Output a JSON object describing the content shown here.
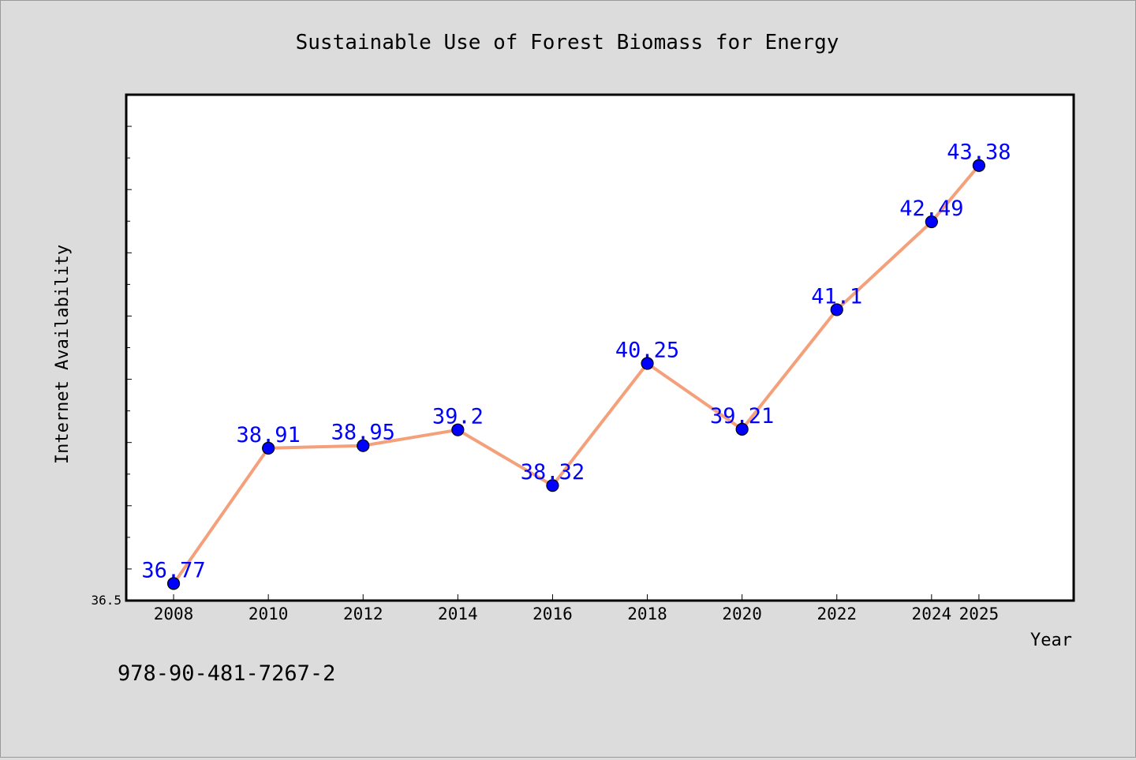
{
  "chart_data": {
    "type": "line",
    "title": "Sustainable Use of Forest Biomass for Energy",
    "xlabel": "Year",
    "ylabel": "Internet Availability",
    "x": [
      "2008",
      "2010",
      "2012",
      "2014",
      "2016",
      "2018",
      "2020",
      "2022",
      "2024",
      "2025"
    ],
    "series": [
      {
        "values": [
          36.77,
          38.91,
          38.95,
          39.2,
          38.32,
          40.25,
          39.21,
          41.1,
          42.49,
          43.38
        ],
        "labels": [
          "36.77",
          "38.91",
          "38.95",
          "39.2",
          "38.32",
          "40.25",
          "39.21",
          "41.1",
          "42.49",
          "43.38"
        ]
      }
    ],
    "ylim": [
      36.5,
      44.5
    ],
    "y_tick_labels": [
      "36.5"
    ],
    "grid": false,
    "legend": "none",
    "colors": {
      "line": "#f4a07a",
      "marker": "#0000ff",
      "label": "#0000ff",
      "background": "#dcdcdc",
      "plot_area": "#ffffff"
    }
  },
  "footer": {
    "isbn": "978-90-481-7267-2"
  }
}
